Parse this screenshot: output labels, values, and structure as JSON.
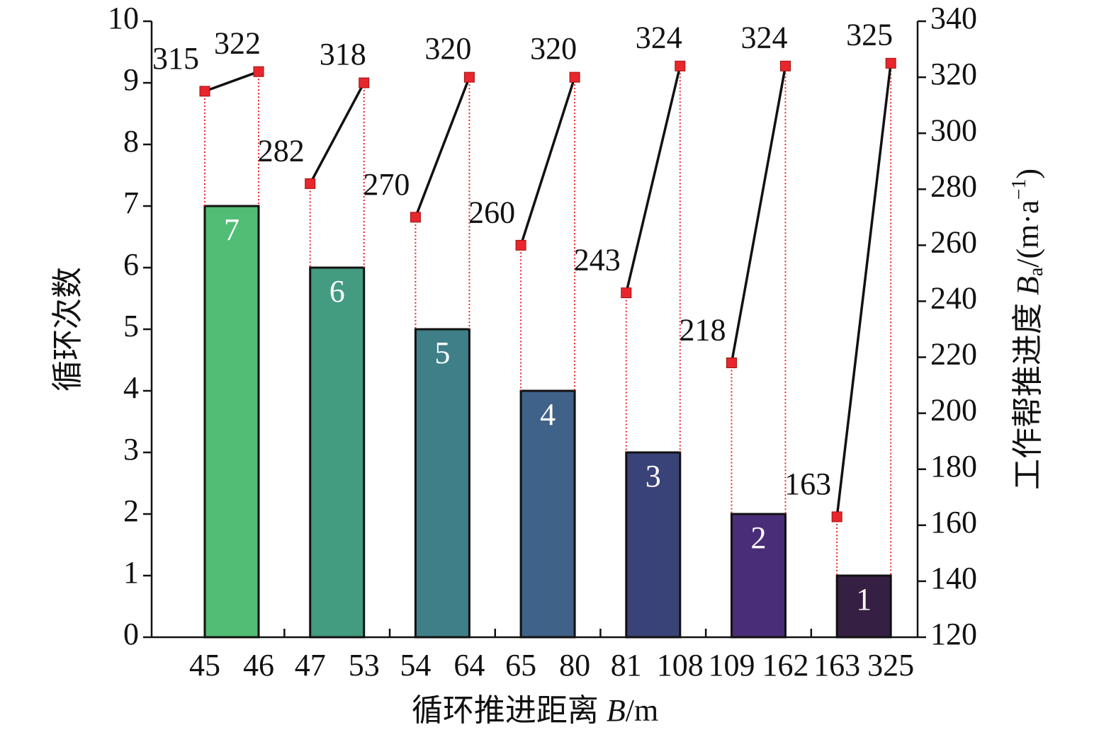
{
  "chart_data": {
    "type": "bar",
    "x_label_parts": [
      "循环推进距离 ",
      "B",
      "/m"
    ],
    "y_label": "循环次数",
    "y2_label_parts": [
      "工作帮推进度 ",
      "B",
      "a",
      "/(m·a",
      "−1",
      ")"
    ],
    "xticklabels": [
      "45",
      "46",
      "47",
      "53",
      "54",
      "64",
      "65",
      "80",
      "81",
      "108",
      "109",
      "162",
      "163",
      "325"
    ],
    "ylim": [
      0,
      10
    ],
    "yticks": [
      0,
      1,
      2,
      3,
      4,
      5,
      6,
      7,
      8,
      9,
      10
    ],
    "y2lim": [
      120,
      340
    ],
    "y2ticks": [
      120,
      140,
      160,
      180,
      200,
      220,
      240,
      260,
      280,
      300,
      320,
      340
    ],
    "series": [
      {
        "type": "bar",
        "values": [
          7,
          6,
          5,
          4,
          3,
          2,
          1
        ],
        "colors": [
          "#52bd74",
          "#439b80",
          "#3f7f88",
          "#3f6289",
          "#3a4378",
          "#4a2d78",
          "#352044"
        ]
      },
      {
        "type": "line",
        "axis": "y2",
        "color": "#111111",
        "marker_color": "#e8262b",
        "values_start": [
          315,
          282,
          270,
          260,
          243,
          218,
          163
        ],
        "values_end": [
          322,
          318,
          320,
          320,
          324,
          324,
          325
        ]
      }
    ]
  }
}
